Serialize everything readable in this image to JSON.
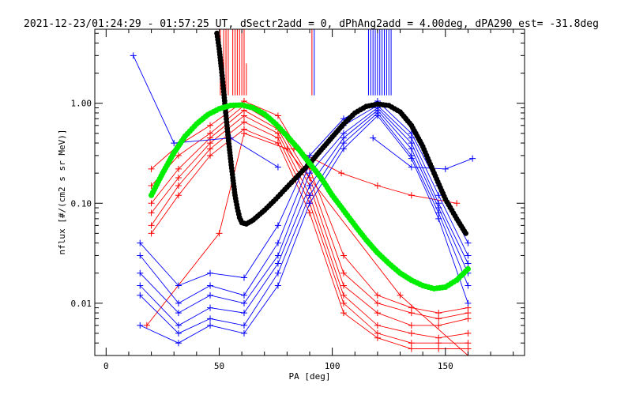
{
  "chart_data": {
    "type": "scatter",
    "title": "2021-12-23/01:24:29 - 01:57:25 UT, dSectr2add = 0, dPhAng2add = 4.00deg, dPA290_est= -31.8deg",
    "xlabel": "PA [deg]",
    "ylabel": "nflux [#/(cm2 s sr MeV)]",
    "xlim": [
      -5,
      185
    ],
    "ylim": [
      0.003,
      5.5
    ],
    "yscale": "log",
    "grid": false,
    "legend": "none",
    "xticks": [
      0,
      50,
      100,
      150
    ],
    "xtick_labels": [
      "0",
      "50",
      "100",
      "150"
    ],
    "yticks": [
      0.01,
      0.1,
      1.0
    ],
    "ytick_labels": [
      "0.01",
      "0.10",
      "1.00"
    ],
    "colors": {
      "red": "#ff0000",
      "blue": "#0000ff",
      "green": "#00ee00",
      "black": "#000000"
    },
    "series": [
      {
        "color": "red",
        "kind": "vlines",
        "x": [
          50.5,
          52,
          53,
          54,
          56,
          57,
          58,
          59,
          60,
          61,
          62,
          91
        ],
        "y0": 1.2,
        "y1": [
          5.5,
          5.5,
          5.5,
          5.5,
          5.5,
          5.5,
          5.5,
          5.5,
          5.5,
          5.5,
          2.5,
          5.5
        ]
      },
      {
        "color": "blue",
        "kind": "vlines",
        "x": [
          92,
          116,
          117,
          118,
          119,
          120,
          121,
          122,
          123,
          124,
          125,
          126
        ],
        "y0": 1.2,
        "y1": [
          5.5,
          5.5,
          5.5,
          5.5,
          5.5,
          5.5,
          5.5,
          5.5,
          5.5,
          5.5,
          5.5,
          5.5
        ]
      },
      {
        "color": "red",
        "kind": "polyline",
        "x": [
          20,
          32,
          46,
          61,
          76,
          90,
          105,
          120,
          135,
          147,
          160
        ],
        "y": [
          0.22,
          0.38,
          0.6,
          1.05,
          0.75,
          0.22,
          0.03,
          0.012,
          0.009,
          0.008,
          0.009
        ]
      },
      {
        "color": "red",
        "kind": "polyline",
        "x": [
          20,
          32,
          46,
          61,
          76,
          90,
          105,
          120,
          135,
          147,
          160
        ],
        "y": [
          0.15,
          0.3,
          0.5,
          0.95,
          0.6,
          0.18,
          0.02,
          0.01,
          0.008,
          0.007,
          0.008
        ]
      },
      {
        "color": "red",
        "kind": "polyline",
        "x": [
          20,
          32,
          46,
          61,
          76,
          90,
          105,
          120,
          135,
          147,
          160
        ],
        "y": [
          0.1,
          0.22,
          0.45,
          0.85,
          0.55,
          0.15,
          0.015,
          0.008,
          0.006,
          0.006,
          0.007
        ]
      },
      {
        "color": "red",
        "kind": "polyline",
        "x": [
          20,
          32,
          46,
          61,
          76,
          90,
          105,
          120,
          135,
          147,
          160
        ],
        "y": [
          0.08,
          0.18,
          0.4,
          0.75,
          0.5,
          0.12,
          0.012,
          0.006,
          0.005,
          0.0045,
          0.005
        ]
      },
      {
        "color": "red",
        "kind": "polyline",
        "x": [
          20,
          32,
          46,
          61,
          76,
          90,
          105,
          120,
          135,
          147,
          160
        ],
        "y": [
          0.06,
          0.15,
          0.35,
          0.65,
          0.45,
          0.1,
          0.01,
          0.005,
          0.004,
          0.004,
          0.004
        ]
      },
      {
        "color": "red",
        "kind": "polyline",
        "x": [
          20,
          32,
          46,
          61,
          76,
          90,
          105,
          120,
          135,
          147,
          160
        ],
        "y": [
          0.05,
          0.12,
          0.3,
          0.55,
          0.4,
          0.08,
          0.008,
          0.0045,
          0.0035,
          0.0035,
          0.0035
        ]
      },
      {
        "color": "red",
        "kind": "polyline",
        "x": [
          18,
          50,
          61,
          80,
          130,
          160
        ],
        "y": [
          0.006,
          0.05,
          0.5,
          0.35,
          0.012,
          0.003
        ]
      },
      {
        "color": "red",
        "kind": "polyline",
        "x": [
          83,
          104,
          120,
          135,
          155
        ],
        "y": [
          0.35,
          0.2,
          0.15,
          0.12,
          0.1
        ]
      },
      {
        "color": "blue",
        "kind": "polyline",
        "x": [
          15,
          32,
          46,
          61,
          76,
          90,
          105,
          120,
          135,
          147,
          160
        ],
        "y": [
          0.04,
          0.015,
          0.02,
          0.018,
          0.06,
          0.3,
          0.7,
          1.05,
          0.5,
          0.15,
          0.04
        ]
      },
      {
        "color": "blue",
        "kind": "polyline",
        "x": [
          15,
          32,
          46,
          61,
          76,
          90,
          105,
          120,
          135,
          147,
          160
        ],
        "y": [
          0.03,
          0.01,
          0.015,
          0.012,
          0.04,
          0.25,
          0.6,
          0.95,
          0.45,
          0.12,
          0.03
        ]
      },
      {
        "color": "blue",
        "kind": "polyline",
        "x": [
          15,
          32,
          46,
          61,
          76,
          90,
          105,
          120,
          135,
          147,
          160
        ],
        "y": [
          0.02,
          0.008,
          0.012,
          0.01,
          0.03,
          0.2,
          0.5,
          0.9,
          0.4,
          0.1,
          0.025
        ]
      },
      {
        "color": "blue",
        "kind": "polyline",
        "x": [
          15,
          32,
          46,
          61,
          76,
          90,
          105,
          120,
          135,
          147,
          160
        ],
        "y": [
          0.015,
          0.006,
          0.009,
          0.008,
          0.025,
          0.15,
          0.45,
          0.85,
          0.35,
          0.09,
          0.02
        ]
      },
      {
        "color": "blue",
        "kind": "polyline",
        "x": [
          15,
          32,
          46,
          61,
          76,
          90,
          105,
          120,
          135,
          147,
          160
        ],
        "y": [
          0.012,
          0.005,
          0.007,
          0.006,
          0.02,
          0.12,
          0.4,
          0.8,
          0.3,
          0.08,
          0.015
        ]
      },
      {
        "color": "blue",
        "kind": "polyline",
        "x": [
          15,
          32,
          46,
          61,
          76,
          90,
          105,
          120,
          135,
          147,
          160
        ],
        "y": [
          0.006,
          0.004,
          0.006,
          0.005,
          0.015,
          0.1,
          0.35,
          0.75,
          0.28,
          0.07,
          0.01
        ]
      },
      {
        "color": "blue",
        "kind": "polyline",
        "x": [
          12,
          30,
          55,
          76
        ],
        "y": [
          3.0,
          0.4,
          0.45,
          0.23
        ]
      },
      {
        "color": "blue",
        "kind": "polyline",
        "x": [
          118,
          135,
          150,
          162
        ],
        "y": [
          0.45,
          0.23,
          0.22,
          0.28
        ]
      },
      {
        "color": "black",
        "kind": "markers",
        "x": [
          49,
          50,
          51,
          52,
          53,
          54,
          55,
          56,
          57,
          58,
          59,
          60,
          62,
          65,
          70,
          75,
          80,
          85,
          90,
          95,
          100,
          105,
          110,
          115,
          120,
          125,
          130,
          135,
          140,
          145,
          150,
          155,
          159
        ],
        "y": [
          5.0,
          3.5,
          2.2,
          1.3,
          0.75,
          0.45,
          0.28,
          0.18,
          0.12,
          0.09,
          0.072,
          0.064,
          0.062,
          0.068,
          0.085,
          0.11,
          0.145,
          0.19,
          0.25,
          0.34,
          0.46,
          0.62,
          0.8,
          0.93,
          0.98,
          0.95,
          0.82,
          0.6,
          0.37,
          0.2,
          0.11,
          0.07,
          0.05
        ]
      },
      {
        "color": "green",
        "kind": "markers",
        "x": [
          20,
          25,
          30,
          35,
          40,
          45,
          50,
          55,
          60,
          65,
          70,
          75,
          80,
          85,
          90,
          95,
          100,
          105,
          110,
          115,
          120,
          125,
          130,
          135,
          140,
          145,
          150,
          155,
          160
        ],
        "y": [
          0.12,
          0.2,
          0.32,
          0.47,
          0.62,
          0.77,
          0.88,
          0.95,
          0.96,
          0.9,
          0.78,
          0.62,
          0.47,
          0.35,
          0.25,
          0.18,
          0.12,
          0.085,
          0.06,
          0.043,
          0.032,
          0.025,
          0.02,
          0.017,
          0.015,
          0.014,
          0.0145,
          0.017,
          0.022
        ]
      }
    ]
  }
}
